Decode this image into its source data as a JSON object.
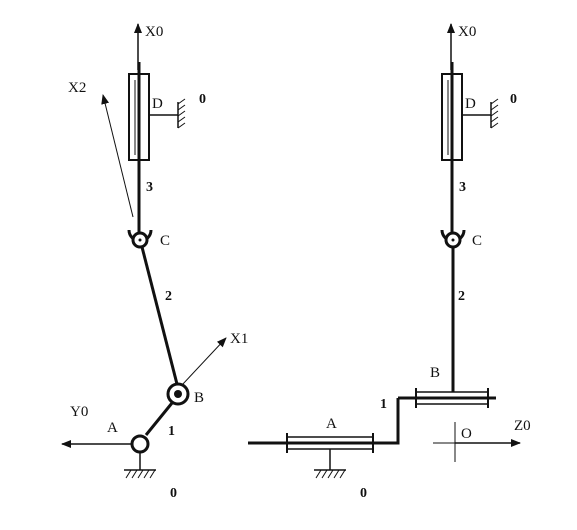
{
  "colors": {
    "ink": "#111111",
    "background": "#ffffff"
  },
  "left_view": {
    "axes": {
      "x0": "X0",
      "x1": "X1",
      "x2": "X2",
      "y0": "Y0"
    },
    "joints": {
      "a": "A",
      "b": "B",
      "c": "C",
      "d": "D"
    },
    "links": {
      "l1": "1",
      "l2": "2",
      "l3": "3"
    },
    "ground": {
      "a": "0",
      "d": "0"
    }
  },
  "right_view": {
    "axes": {
      "x0": "X0",
      "z0": "Z0"
    },
    "joints": {
      "a": "A",
      "b": "B",
      "c": "C",
      "d": "D"
    },
    "links": {
      "l1": "1",
      "l2": "2",
      "l3": "3"
    },
    "ground": {
      "a": "0",
      "d": "0"
    },
    "origin": "O"
  }
}
